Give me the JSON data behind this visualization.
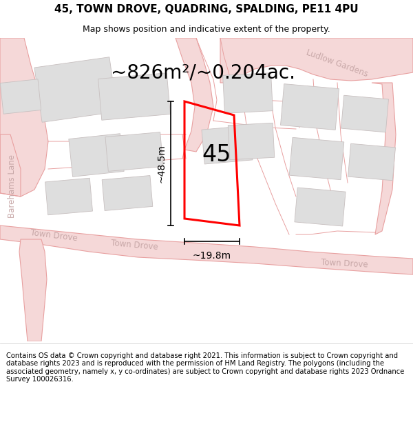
{
  "title": "45, TOWN DROVE, QUADRING, SPALDING, PE11 4PU",
  "subtitle": "Map shows position and indicative extent of the property.",
  "area_text": "~826m²/~0.204ac.",
  "number_label": "45",
  "dim_height": "~48.5m",
  "dim_width": "~19.8m",
  "footer": "Contains OS data © Crown copyright and database right 2021. This information is subject to Crown copyright and database rights 2023 and is reproduced with the permission of HM Land Registry. The polygons (including the associated geometry, namely x, y co-ordinates) are subject to Crown copyright and database rights 2023 Ordnance Survey 100026316.",
  "map_bg": "#ffffff",
  "road_color": "#f5d8d8",
  "road_edge": "#e8a0a0",
  "plot_line_color": "#e89090",
  "building_fill": "#dedede",
  "building_edge": "#c8c0c0",
  "plot_color": "#ff0000",
  "plot_linewidth": 2.2,
  "title_fontsize": 11,
  "subtitle_fontsize": 9,
  "area_fontsize": 20,
  "number_fontsize": 24,
  "dim_fontsize": 10,
  "footer_fontsize": 7.2,
  "street_label_color": "#c8a8a8",
  "street_label_fontsize": 8.5
}
